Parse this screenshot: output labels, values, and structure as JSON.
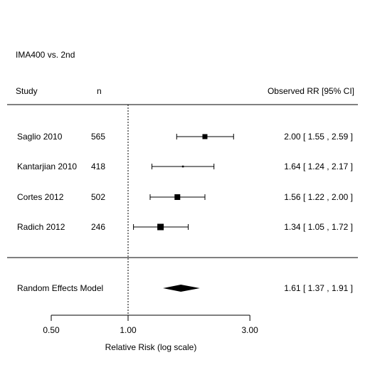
{
  "chart_data": {
    "type": "forest",
    "title": "IMA400 vs. 2nd",
    "headers": {
      "study": "Study",
      "n": "n",
      "estimate": "Observed RR [95% CI]"
    },
    "studies": [
      {
        "label": "Saglio 2010",
        "n": "565",
        "rr": 2.0,
        "lo": 1.55,
        "hi": 2.59,
        "text": "2.00 [ 1.55 , 2.59 ]"
      },
      {
        "label": "Kantarjian 2010",
        "n": "418",
        "rr": 1.64,
        "lo": 1.24,
        "hi": 2.17,
        "text": "1.64 [ 1.24 , 2.17 ]"
      },
      {
        "label": "Cortes 2012",
        "n": "502",
        "rr": 1.56,
        "lo": 1.22,
        "hi": 2.0,
        "text": "1.56 [ 1.22 , 2.00 ]"
      },
      {
        "label": "Radich 2012",
        "n": "246",
        "rr": 1.34,
        "lo": 1.05,
        "hi": 1.72,
        "text": "1.34 [ 1.05 , 1.72 ]"
      }
    ],
    "summary": {
      "label": "Random Effects Model",
      "rr": 1.61,
      "lo": 1.37,
      "hi": 1.91,
      "text": "1.61 [ 1.37 , 1.91 ]"
    },
    "x_axis": {
      "label": "Relative Risk (log scale)",
      "scale": "log",
      "range": [
        0.5,
        3.0
      ],
      "ticks": [
        0.5,
        1.0,
        3.0
      ],
      "tick_labels": [
        "0.50",
        "1.00",
        "3.00"
      ]
    },
    "reference_line": 1.0
  }
}
